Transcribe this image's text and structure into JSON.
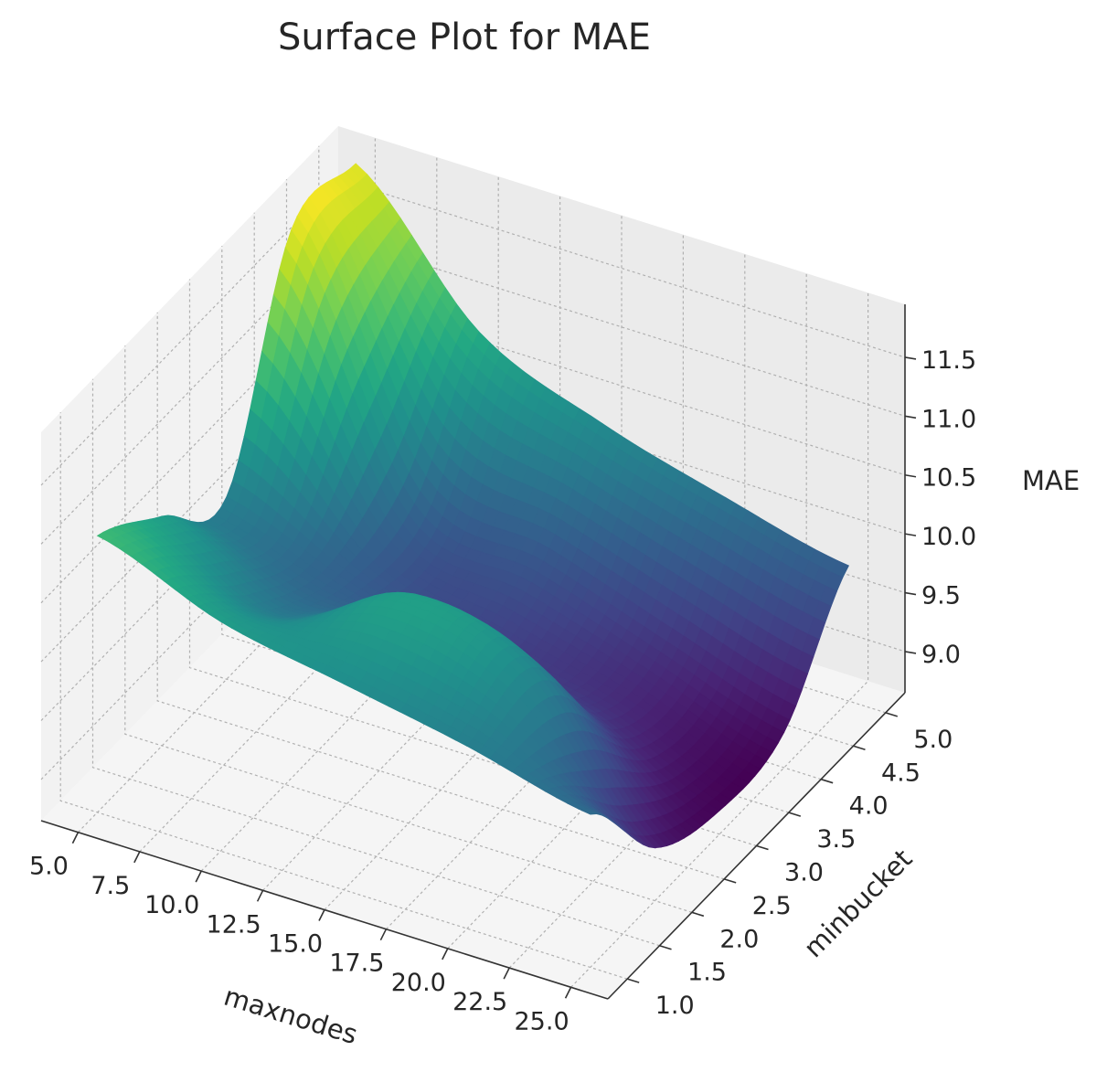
{
  "chart_data": {
    "type": "surface",
    "title": "Surface Plot for MAE",
    "xlabel": "maxnodes",
    "ylabel": "minbucket",
    "zlabel": "MAE",
    "xlim": [
      3.5,
      26.5
    ],
    "ylim": [
      0.7,
      5.3
    ],
    "zlim": [
      8.65,
      11.95
    ],
    "x_ticks": [
      "5.0",
      "7.5",
      "10.0",
      "12.5",
      "15.0",
      "17.5",
      "20.0",
      "22.5",
      "25.0"
    ],
    "x_tick_values": [
      5.0,
      7.5,
      10.0,
      12.5,
      15.0,
      17.5,
      20.0,
      22.5,
      25.0
    ],
    "y_ticks": [
      "1.0",
      "1.5",
      "2.0",
      "2.5",
      "3.0",
      "3.5",
      "4.0",
      "4.5",
      "5.0"
    ],
    "y_tick_values": [
      1.0,
      1.5,
      2.0,
      2.5,
      3.0,
      3.5,
      4.0,
      4.5,
      5.0
    ],
    "z_ticks": [
      "9.0",
      "9.5",
      "10.0",
      "10.5",
      "11.0",
      "11.5"
    ],
    "z_tick_values": [
      9.0,
      9.5,
      10.0,
      10.5,
      11.0,
      11.5
    ],
    "colormap": "viridis",
    "grid": true,
    "x": [
      5,
      10,
      15,
      20,
      25
    ],
    "y": [
      1,
      2,
      3,
      4,
      5
    ],
    "z": [
      [
        11.0,
        10.6,
        10.4,
        10.2,
        9.95
      ],
      [
        10.6,
        10.1,
        10.6,
        10.3,
        9.1
      ],
      [
        10.2,
        9.8,
        9.55,
        9.35,
        8.85
      ],
      [
        11.9,
        9.9,
        9.65,
        9.3,
        8.95
      ],
      [
        11.9,
        10.8,
        10.35,
        10.05,
        9.8
      ]
    ],
    "colors": {
      "pane_left": "#f2f2f2",
      "pane_right": "#ebebeb",
      "pane_floor": "#f5f5f5",
      "grid": "#b0b0b0",
      "text": "#262626"
    }
  }
}
